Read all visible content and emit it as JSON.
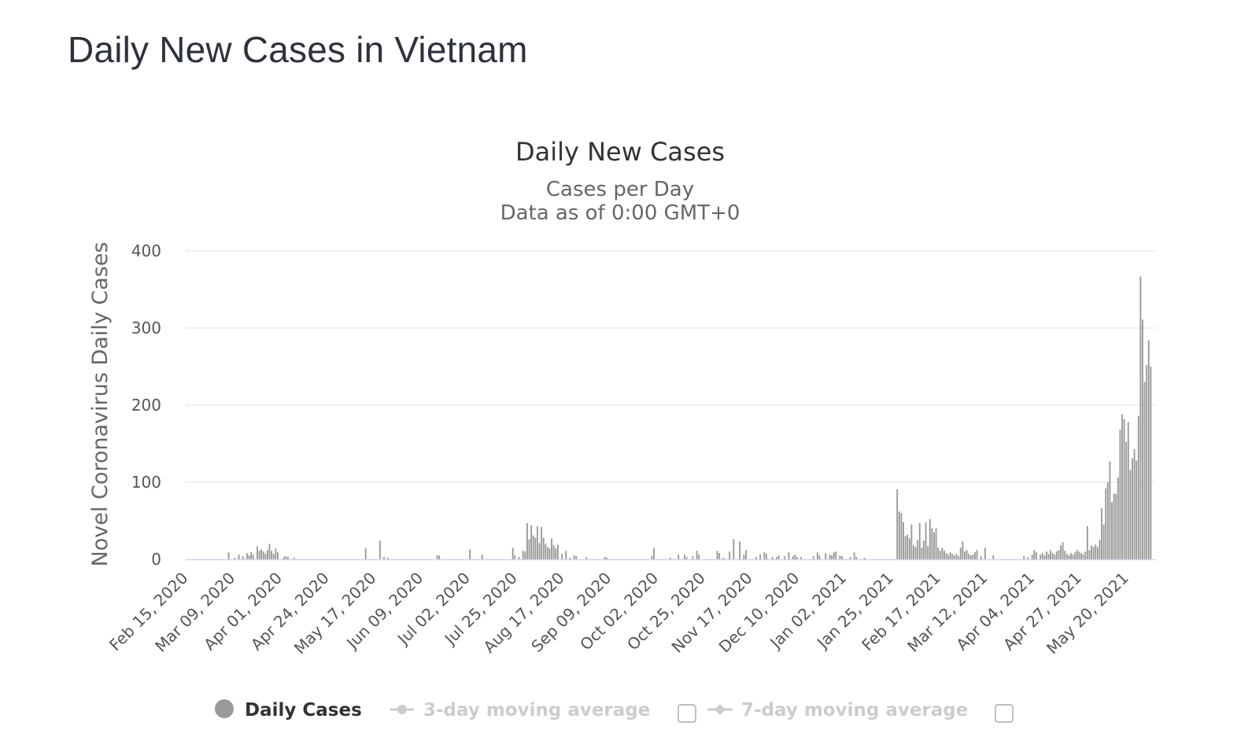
{
  "page": {
    "title": "Daily New Cases in Vietnam"
  },
  "chart_data": {
    "type": "bar",
    "title": "Daily New Cases",
    "subtitle_lines": [
      "Cases per Day",
      "Data as of 0:00 GMT+0"
    ],
    "ylabel": "Novel Coronavirus Daily Cases",
    "xlabel": "",
    "ylim": [
      0,
      400
    ],
    "y_ticks": [
      0,
      100,
      200,
      300,
      400
    ],
    "grid": true,
    "x_start_date": "2020-02-15",
    "x_end_date": "2021-05-28",
    "x_tick_labels": [
      "Feb 15, 2020",
      "Mar 09, 2020",
      "Apr 01, 2020",
      "Apr 24, 2020",
      "May 17, 2020",
      "Jun 09, 2020",
      "Jul 02, 2020",
      "Jul 25, 2020",
      "Aug 17, 2020",
      "Sep 09, 2020",
      "Oct 02, 2020",
      "Oct 25, 2020",
      "Nov 17, 2020",
      "Dec 10, 2020",
      "Jan 02, 2021",
      "Jan 25, 2021",
      "Feb 17, 2021",
      "Mar 12, 2021",
      "Apr 04, 2021",
      "Apr 27, 2021",
      "May 20, 2021"
    ],
    "series": [
      {
        "name": "Daily Cases",
        "color": "#999999",
        "points": [
          [
            "2020-03-07",
            9
          ],
          [
            "2020-03-10",
            2
          ],
          [
            "2020-03-12",
            6
          ],
          [
            "2020-03-14",
            4
          ],
          [
            "2020-03-16",
            8
          ],
          [
            "2020-03-17",
            5
          ],
          [
            "2020-03-18",
            9
          ],
          [
            "2020-03-19",
            6
          ],
          [
            "2020-03-21",
            17
          ],
          [
            "2020-03-22",
            11
          ],
          [
            "2020-03-23",
            13
          ],
          [
            "2020-03-24",
            10
          ],
          [
            "2020-03-25",
            7
          ],
          [
            "2020-03-26",
            12
          ],
          [
            "2020-03-27",
            20
          ],
          [
            "2020-03-28",
            11
          ],
          [
            "2020-03-29",
            7
          ],
          [
            "2020-03-30",
            14
          ],
          [
            "2020-03-31",
            9
          ],
          [
            "2020-04-03",
            3
          ],
          [
            "2020-04-04",
            4
          ],
          [
            "2020-04-05",
            3
          ],
          [
            "2020-04-08",
            2
          ],
          [
            "2020-05-13",
            15
          ],
          [
            "2020-05-20",
            24
          ],
          [
            "2020-05-22",
            3
          ],
          [
            "2020-05-24",
            2
          ],
          [
            "2020-06-17",
            5
          ],
          [
            "2020-06-18",
            5
          ],
          [
            "2020-07-03",
            13
          ],
          [
            "2020-07-09",
            6
          ],
          [
            "2020-07-24",
            15
          ],
          [
            "2020-07-25",
            5
          ],
          [
            "2020-07-27",
            3
          ],
          [
            "2020-07-29",
            11
          ],
          [
            "2020-07-30",
            10
          ],
          [
            "2020-07-31",
            47
          ],
          [
            "2020-08-01",
            26
          ],
          [
            "2020-08-02",
            44
          ],
          [
            "2020-08-03",
            31
          ],
          [
            "2020-08-04",
            28
          ],
          [
            "2020-08-05",
            43
          ],
          [
            "2020-08-06",
            21
          ],
          [
            "2020-08-07",
            42
          ],
          [
            "2020-08-08",
            28
          ],
          [
            "2020-08-09",
            20
          ],
          [
            "2020-08-10",
            16
          ],
          [
            "2020-08-11",
            14
          ],
          [
            "2020-08-12",
            27
          ],
          [
            "2020-08-13",
            18
          ],
          [
            "2020-08-14",
            14
          ],
          [
            "2020-08-15",
            19
          ],
          [
            "2020-08-17",
            7
          ],
          [
            "2020-08-19",
            11
          ],
          [
            "2020-08-21",
            2
          ],
          [
            "2020-08-23",
            5
          ],
          [
            "2020-08-24",
            4
          ],
          [
            "2020-08-29",
            3
          ],
          [
            "2020-09-07",
            3
          ],
          [
            "2020-09-08",
            2
          ],
          [
            "2020-09-30",
            4
          ],
          [
            "2020-10-01",
            15
          ],
          [
            "2020-10-09",
            2
          ],
          [
            "2020-10-13",
            6
          ],
          [
            "2020-10-16",
            6
          ],
          [
            "2020-10-17",
            3
          ],
          [
            "2020-10-20",
            4
          ],
          [
            "2020-10-22",
            11
          ],
          [
            "2020-10-23",
            6
          ],
          [
            "2020-11-01",
            11
          ],
          [
            "2020-11-02",
            8
          ],
          [
            "2020-11-04",
            2
          ],
          [
            "2020-11-07",
            10
          ],
          [
            "2020-11-09",
            26
          ],
          [
            "2020-11-12",
            23
          ],
          [
            "2020-11-14",
            6
          ],
          [
            "2020-11-15",
            12
          ],
          [
            "2020-11-20",
            3
          ],
          [
            "2020-11-22",
            6
          ],
          [
            "2020-11-24",
            9
          ],
          [
            "2020-11-25",
            7
          ],
          [
            "2020-11-28",
            3
          ],
          [
            "2020-11-30",
            3
          ],
          [
            "2020-12-01",
            5
          ],
          [
            "2020-12-04",
            4
          ],
          [
            "2020-12-06",
            9
          ],
          [
            "2020-12-08",
            4
          ],
          [
            "2020-12-09",
            6
          ],
          [
            "2020-12-10",
            3
          ],
          [
            "2020-12-12",
            3
          ],
          [
            "2020-12-18",
            4
          ],
          [
            "2020-12-20",
            9
          ],
          [
            "2020-12-21",
            5
          ],
          [
            "2020-12-24",
            8
          ],
          [
            "2020-12-26",
            6
          ],
          [
            "2020-12-27",
            5
          ],
          [
            "2020-12-28",
            9
          ],
          [
            "2020-12-29",
            10
          ],
          [
            "2020-12-31",
            5
          ],
          [
            "2021-01-01",
            4
          ],
          [
            "2021-01-05",
            3
          ],
          [
            "2021-01-07",
            9
          ],
          [
            "2021-01-08",
            3
          ],
          [
            "2021-01-12",
            2
          ],
          [
            "2021-01-28",
            91
          ],
          [
            "2021-01-29",
            62
          ],
          [
            "2021-01-30",
            60
          ],
          [
            "2021-01-31",
            48
          ],
          [
            "2021-02-01",
            30
          ],
          [
            "2021-02-02",
            32
          ],
          [
            "2021-02-03",
            27
          ],
          [
            "2021-02-04",
            45
          ],
          [
            "2021-02-05",
            18
          ],
          [
            "2021-02-06",
            16
          ],
          [
            "2021-02-07",
            25
          ],
          [
            "2021-02-08",
            47
          ],
          [
            "2021-02-09",
            15
          ],
          [
            "2021-02-10",
            24
          ],
          [
            "2021-02-11",
            48
          ],
          [
            "2021-02-12",
            17
          ],
          [
            "2021-02-13",
            52
          ],
          [
            "2021-02-14",
            40
          ],
          [
            "2021-02-15",
            35
          ],
          [
            "2021-02-16",
            40
          ],
          [
            "2021-02-17",
            15
          ],
          [
            "2021-02-18",
            11
          ],
          [
            "2021-02-19",
            15
          ],
          [
            "2021-02-20",
            11
          ],
          [
            "2021-02-21",
            8
          ],
          [
            "2021-02-22",
            6
          ],
          [
            "2021-02-23",
            9
          ],
          [
            "2021-02-24",
            7
          ],
          [
            "2021-02-25",
            5
          ],
          [
            "2021-02-26",
            7
          ],
          [
            "2021-02-27",
            4
          ],
          [
            "2021-02-28",
            15
          ],
          [
            "2021-03-01",
            23
          ],
          [
            "2021-03-02",
            10
          ],
          [
            "2021-03-03",
            12
          ],
          [
            "2021-03-04",
            7
          ],
          [
            "2021-03-05",
            5
          ],
          [
            "2021-03-06",
            6
          ],
          [
            "2021-03-07",
            9
          ],
          [
            "2021-03-08",
            12
          ],
          [
            "2021-03-10",
            4
          ],
          [
            "2021-03-12",
            15
          ],
          [
            "2021-03-16",
            5
          ],
          [
            "2021-03-31",
            4
          ],
          [
            "2021-04-02",
            3
          ],
          [
            "2021-04-04",
            6
          ],
          [
            "2021-04-05",
            12
          ],
          [
            "2021-04-06",
            9
          ],
          [
            "2021-04-08",
            6
          ],
          [
            "2021-04-09",
            8
          ],
          [
            "2021-04-10",
            5
          ],
          [
            "2021-04-11",
            10
          ],
          [
            "2021-04-12",
            7
          ],
          [
            "2021-04-13",
            12
          ],
          [
            "2021-04-14",
            8
          ],
          [
            "2021-04-15",
            6
          ],
          [
            "2021-04-16",
            10
          ],
          [
            "2021-04-17",
            12
          ],
          [
            "2021-04-18",
            18
          ],
          [
            "2021-04-19",
            22
          ],
          [
            "2021-04-20",
            11
          ],
          [
            "2021-04-21",
            7
          ],
          [
            "2021-04-22",
            5
          ],
          [
            "2021-04-23",
            8
          ],
          [
            "2021-04-24",
            6
          ],
          [
            "2021-04-25",
            9
          ],
          [
            "2021-04-26",
            12
          ],
          [
            "2021-04-27",
            10
          ],
          [
            "2021-04-28",
            8
          ],
          [
            "2021-04-29",
            6
          ],
          [
            "2021-04-30",
            10
          ],
          [
            "2021-05-01",
            43
          ],
          [
            "2021-05-02",
            12
          ],
          [
            "2021-05-03",
            18
          ],
          [
            "2021-05-04",
            16
          ],
          [
            "2021-05-05",
            19
          ],
          [
            "2021-05-06",
            16
          ],
          [
            "2021-05-07",
            25
          ],
          [
            "2021-05-08",
            66
          ],
          [
            "2021-05-09",
            45
          ],
          [
            "2021-05-10",
            92
          ],
          [
            "2021-05-11",
            100
          ],
          [
            "2021-05-12",
            127
          ],
          [
            "2021-05-13",
            74
          ],
          [
            "2021-05-14",
            85
          ],
          [
            "2021-05-15",
            85
          ],
          [
            "2021-05-16",
            106
          ],
          [
            "2021-05-17",
            168
          ],
          [
            "2021-05-18",
            188
          ],
          [
            "2021-05-19",
            182
          ],
          [
            "2021-05-20",
            152
          ],
          [
            "2021-05-21",
            178
          ],
          [
            "2021-05-22",
            116
          ],
          [
            "2021-05-23",
            131
          ],
          [
            "2021-05-24",
            143
          ],
          [
            "2021-05-25",
            128
          ],
          [
            "2021-05-26",
            186
          ],
          [
            "2021-05-27",
            367
          ],
          [
            "2021-05-28",
            311
          ],
          [
            "2021-05-29",
            230
          ],
          [
            "2021-05-30",
            252
          ],
          [
            "2021-05-31",
            284
          ],
          [
            "2021-06-01",
            250
          ]
        ]
      }
    ],
    "legend": {
      "placement": "bottom",
      "items": [
        {
          "label": "Daily Cases",
          "active": true,
          "color": "#999999"
        },
        {
          "label": "3-day moving average",
          "active": false,
          "color": "#cccccc"
        },
        {
          "label": "7-day moving average",
          "active": false,
          "color": "#cccccc"
        }
      ]
    },
    "colors": {
      "bar": "#999999",
      "grid": "#e6e6e6",
      "axis_line": "#ccd6eb",
      "inactive": "#cccccc"
    }
  }
}
